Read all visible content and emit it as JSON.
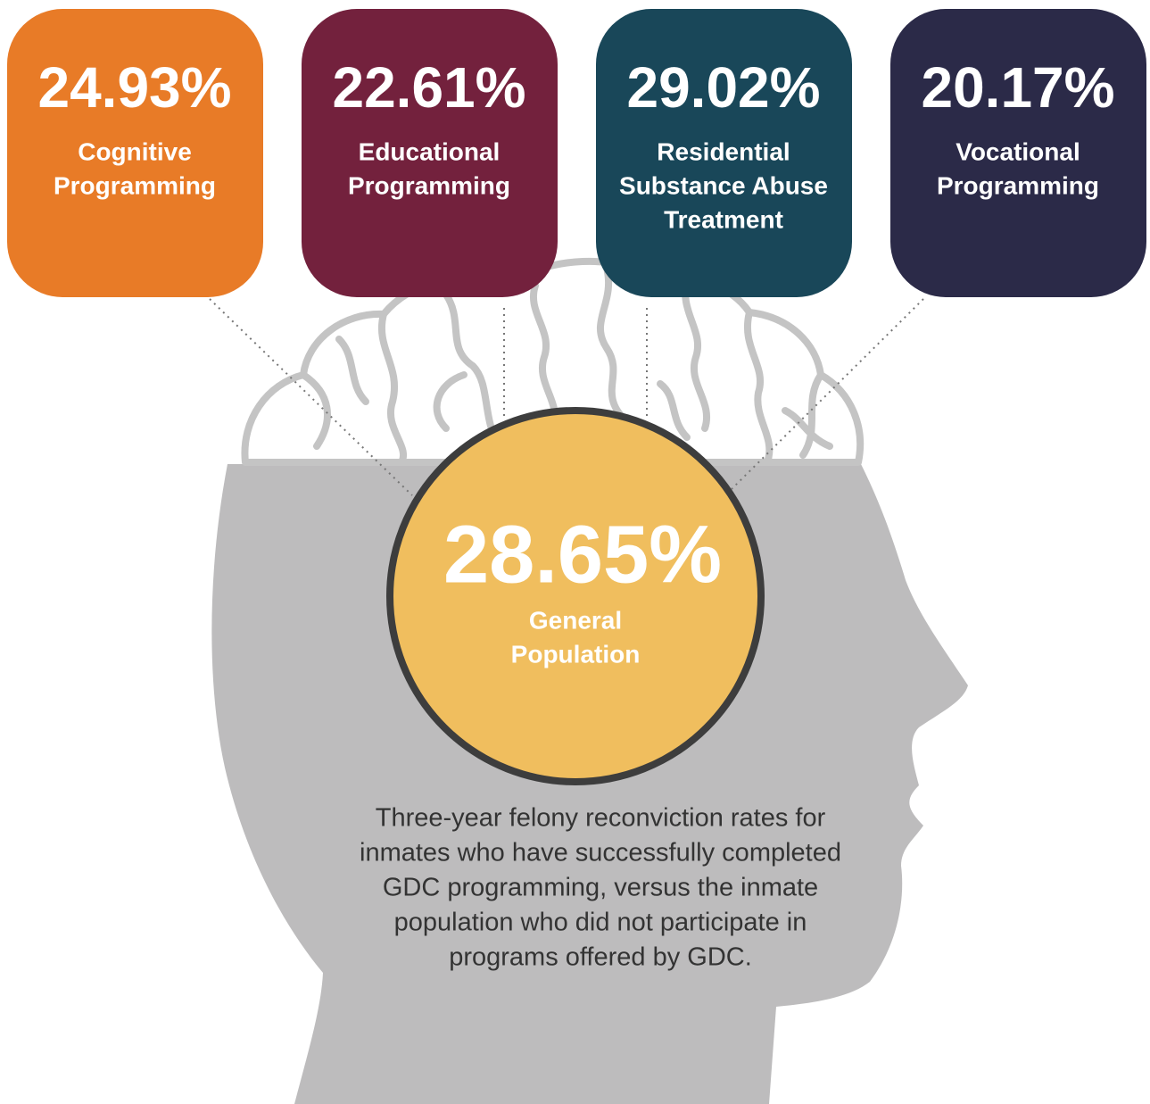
{
  "cards": [
    {
      "value": "24.93%",
      "label": [
        "Cognitive",
        "Programming"
      ]
    },
    {
      "value": "22.61%",
      "label": [
        "Educational",
        "Programming"
      ]
    },
    {
      "value": "29.02%",
      "label": [
        "Residential",
        "Substance Abuse",
        "Treatment"
      ]
    },
    {
      "value": "20.17%",
      "label": [
        "Vocational",
        "Programming"
      ]
    }
  ],
  "center": {
    "value": "28.65%",
    "label": [
      "General",
      "Population"
    ]
  },
  "caption": [
    "Three-year felony reconviction rates for",
    "inmates who have successfully completed",
    "GDC programming, versus the inmate",
    "population who did not participate in",
    "programs offered by GDC."
  ]
}
